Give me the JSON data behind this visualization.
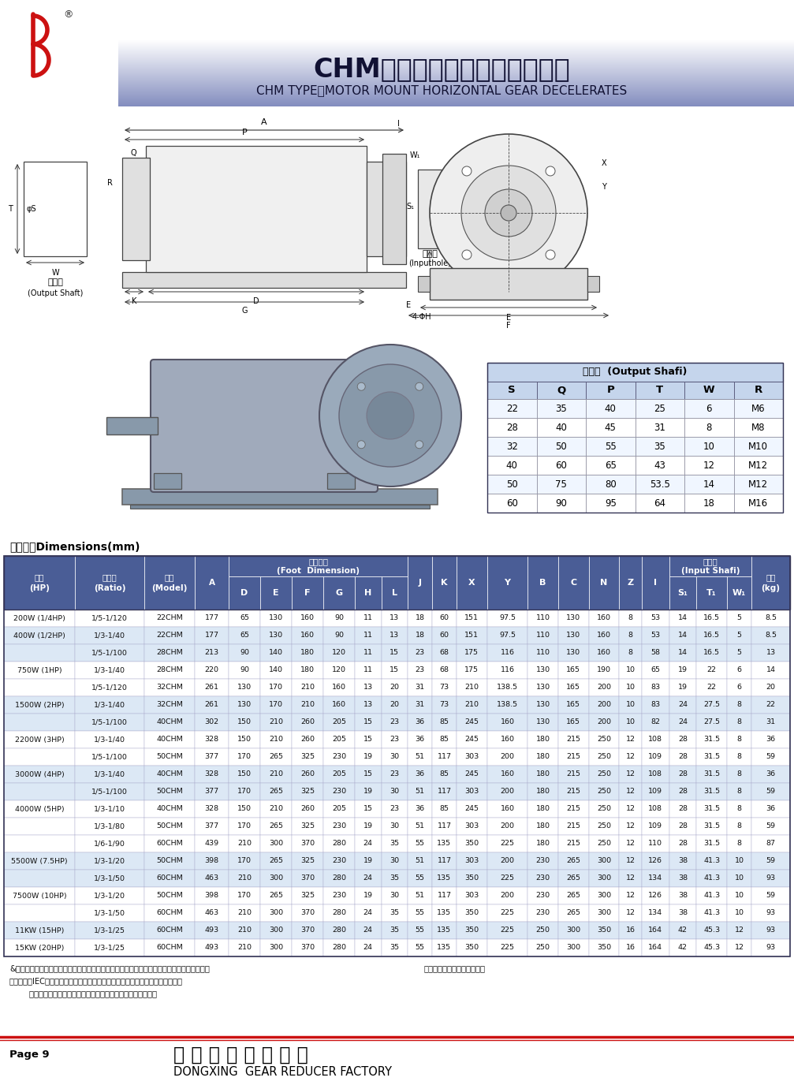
{
  "title_cn": "CHM型：卧式直结型齿轮减速机",
  "title_en": "CHM TYPE：MOTOR MOUNT HORIZONTAL GEAR DECELERATES",
  "output_shaft_title": "出力轴  (Output Shafi)",
  "output_shaft_headers": [
    "S",
    "Q",
    "P",
    "T",
    "W",
    "R"
  ],
  "output_shaft_data": [
    [
      "22",
      "35",
      "40",
      "25",
      "6",
      "M6"
    ],
    [
      "28",
      "40",
      "45",
      "31",
      "8",
      "M8"
    ],
    [
      "32",
      "50",
      "55",
      "35",
      "10",
      "M10"
    ],
    [
      "40",
      "60",
      "65",
      "43",
      "12",
      "M12"
    ],
    [
      "50",
      "75",
      "80",
      "53.5",
      "14",
      "M12"
    ],
    [
      "60",
      "90",
      "95",
      "64",
      "18",
      "M16"
    ]
  ],
  "dim_table_title": "尺寸表。Dimensions(mm)",
  "table_data": [
    [
      "200W (1/4HP)",
      "1/5-1/120",
      "22CHM",
      "177",
      "65",
      "130",
      "160",
      "90",
      "11",
      "13",
      "18",
      "60",
      "151",
      "97.5",
      "110",
      "130",
      "160",
      "8",
      "53",
      "14",
      "16.5",
      "5",
      "8.5"
    ],
    [
      "400W (1/2HP)",
      "1/3-1/40",
      "22CHM",
      "177",
      "65",
      "130",
      "160",
      "90",
      "11",
      "13",
      "18",
      "60",
      "151",
      "97.5",
      "110",
      "130",
      "160",
      "8",
      "53",
      "14",
      "16.5",
      "5",
      "8.5"
    ],
    [
      "",
      "1/5-1/100",
      "28CHM",
      "213",
      "90",
      "140",
      "180",
      "120",
      "11",
      "15",
      "23",
      "68",
      "175",
      "116",
      "110",
      "130",
      "160",
      "8",
      "58",
      "14",
      "16.5",
      "5",
      "13"
    ],
    [
      "750W (1HP)",
      "1/3-1/40",
      "28CHM",
      "220",
      "90",
      "140",
      "180",
      "120",
      "11",
      "15",
      "23",
      "68",
      "175",
      "116",
      "130",
      "165",
      "190",
      "10",
      "65",
      "19",
      "22",
      "6",
      "14"
    ],
    [
      "",
      "1/5-1/120",
      "32CHM",
      "261",
      "130",
      "170",
      "210",
      "160",
      "13",
      "20",
      "31",
      "73",
      "210",
      "138.5",
      "130",
      "165",
      "200",
      "10",
      "83",
      "19",
      "22",
      "6",
      "20"
    ],
    [
      "1500W (2HP)",
      "1/3-1/40",
      "32CHM",
      "261",
      "130",
      "170",
      "210",
      "160",
      "13",
      "20",
      "31",
      "73",
      "210",
      "138.5",
      "130",
      "165",
      "200",
      "10",
      "83",
      "24",
      "27.5",
      "8",
      "22"
    ],
    [
      "",
      "1/5-1/100",
      "40CHM",
      "302",
      "150",
      "210",
      "260",
      "205",
      "15",
      "23",
      "36",
      "85",
      "245",
      "160",
      "130",
      "165",
      "200",
      "10",
      "82",
      "24",
      "27.5",
      "8",
      "31"
    ],
    [
      "2200W (3HP)",
      "1/3-1/40",
      "40CHM",
      "328",
      "150",
      "210",
      "260",
      "205",
      "15",
      "23",
      "36",
      "85",
      "245",
      "160",
      "180",
      "215",
      "250",
      "12",
      "108",
      "28",
      "31.5",
      "8",
      "36"
    ],
    [
      "",
      "1/5-1/100",
      "50CHM",
      "377",
      "170",
      "265",
      "325",
      "230",
      "19",
      "30",
      "51",
      "117",
      "303",
      "200",
      "180",
      "215",
      "250",
      "12",
      "109",
      "28",
      "31.5",
      "8",
      "59"
    ],
    [
      "3000W (4HP)",
      "1/3-1/40",
      "40CHM",
      "328",
      "150",
      "210",
      "260",
      "205",
      "15",
      "23",
      "36",
      "85",
      "245",
      "160",
      "180",
      "215",
      "250",
      "12",
      "108",
      "28",
      "31.5",
      "8",
      "36"
    ],
    [
      "",
      "1/5-1/100",
      "50CHM",
      "377",
      "170",
      "265",
      "325",
      "230",
      "19",
      "30",
      "51",
      "117",
      "303",
      "200",
      "180",
      "215",
      "250",
      "12",
      "109",
      "28",
      "31.5",
      "8",
      "59"
    ],
    [
      "4000W (5HP)",
      "1/3-1/10",
      "40CHM",
      "328",
      "150",
      "210",
      "260",
      "205",
      "15",
      "23",
      "36",
      "85",
      "245",
      "160",
      "180",
      "215",
      "250",
      "12",
      "108",
      "28",
      "31.5",
      "8",
      "36"
    ],
    [
      "",
      "1/3-1/80",
      "50CHM",
      "377",
      "170",
      "265",
      "325",
      "230",
      "19",
      "30",
      "51",
      "117",
      "303",
      "200",
      "180",
      "215",
      "250",
      "12",
      "109",
      "28",
      "31.5",
      "8",
      "59"
    ],
    [
      "",
      "1/6-1/90",
      "60CHM",
      "439",
      "210",
      "300",
      "370",
      "280",
      "24",
      "35",
      "55",
      "135",
      "350",
      "225",
      "180",
      "215",
      "250",
      "12",
      "110",
      "28",
      "31.5",
      "8",
      "87"
    ],
    [
      "5500W (7.5HP)",
      "1/3-1/20",
      "50CHM",
      "398",
      "170",
      "265",
      "325",
      "230",
      "19",
      "30",
      "51",
      "117",
      "303",
      "200",
      "230",
      "265",
      "300",
      "12",
      "126",
      "38",
      "41.3",
      "10",
      "59"
    ],
    [
      "",
      "1/3-1/50",
      "60CHM",
      "463",
      "210",
      "300",
      "370",
      "280",
      "24",
      "35",
      "55",
      "135",
      "350",
      "225",
      "230",
      "265",
      "300",
      "12",
      "134",
      "38",
      "41.3",
      "10",
      "93"
    ],
    [
      "7500W (10HP)",
      "1/3-1/20",
      "50CHM",
      "398",
      "170",
      "265",
      "325",
      "230",
      "19",
      "30",
      "51",
      "117",
      "303",
      "200",
      "230",
      "265",
      "300",
      "12",
      "126",
      "38",
      "41.3",
      "10",
      "59"
    ],
    [
      "",
      "1/3-1/50",
      "60CHM",
      "463",
      "210",
      "300",
      "370",
      "280",
      "24",
      "35",
      "55",
      "135",
      "350",
      "225",
      "230",
      "265",
      "300",
      "12",
      "134",
      "38",
      "41.3",
      "10",
      "93"
    ],
    [
      "11KW (15HP)",
      "1/3-1/25",
      "60CHM",
      "493",
      "210",
      "300",
      "370",
      "280",
      "24",
      "35",
      "55",
      "135",
      "350",
      "225",
      "250",
      "300",
      "350",
      "16",
      "164",
      "42",
      "45.3",
      "12",
      "93"
    ],
    [
      "15KW (20HP)",
      "1/3-1/25",
      "60CHM",
      "493",
      "210",
      "300",
      "370",
      "280",
      "24",
      "35",
      "55",
      "135",
      "350",
      "225",
      "250",
      "300",
      "350",
      "16",
      "164",
      "42",
      "45.3",
      "12",
      "93"
    ]
  ],
  "footnote1": "&：当减速比可选择两种出力轴规格时，轴径小为轻负荷，轴径大为重负荷，请依实际需求选用",
  "footnote1b": "规格如有变更，总不另行通知",
  "footnote2": "备注：配合IEC马达为主，加装马达前需在入力孔处涂上少许黄油，以利于装配，",
  "footnote3": "        若无法顺利装入，请检查轴心尺寸或联络本厂，不得硬装入。",
  "page_label": "Page 9",
  "factory_name_cn": "东 兴 齿 轮 减 速 机 厂",
  "factory_name_en": "DONGXING  GEAR REDUCER FACTORY",
  "header_grad_top": "#8899cc",
  "header_grad_bot": "#aabbdd",
  "table_header_bg": "#4a5d96",
  "table_row_odd": "#dce8f5",
  "table_row_even": "#ffffff",
  "output_table_header_bg": "#c8d8ee",
  "output_table_col_bg": "#d5e5f8",
  "footer_line_color": "#cc0000"
}
